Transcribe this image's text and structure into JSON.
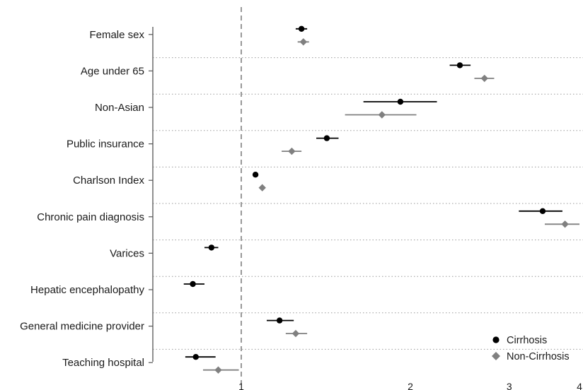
{
  "chart_data": {
    "type": "forest",
    "title": "",
    "xlabel": "",
    "ylabel": "",
    "x_scale": "log",
    "xlim": [
      0.78,
      4.0
    ],
    "reference_line": 1,
    "xticks": [
      1,
      2,
      3,
      4
    ],
    "xtick_labels": [
      "1",
      "2",
      "3",
      "4"
    ],
    "categories": [
      "Female sex",
      "Age under 65",
      "Non-Asian",
      "Public insurance",
      "Charlson Index",
      "Chronic pain diagnosis",
      "Varices",
      "Hepatic encephalopathy",
      "General medicine provider",
      "Teaching hospital"
    ],
    "series": [
      {
        "name": "Cirrhosis",
        "marker": "circle",
        "color": "#000000",
        "estimates": [
          1.28,
          2.45,
          1.92,
          1.42,
          1.06,
          3.44,
          0.885,
          0.82,
          1.17,
          0.83
        ],
        "lower": [
          1.25,
          2.35,
          1.65,
          1.36,
          1.06,
          3.12,
          0.86,
          0.79,
          1.11,
          0.795
        ],
        "upper": [
          1.31,
          2.56,
          2.23,
          1.49,
          1.06,
          3.73,
          0.91,
          0.86,
          1.24,
          0.9
        ]
      },
      {
        "name": "Non-Cirrhosis",
        "marker": "diamond",
        "color": "#808080",
        "estimates": [
          1.29,
          2.71,
          1.78,
          1.23,
          1.09,
          3.77,
          null,
          null,
          1.25,
          0.91
        ],
        "lower": [
          1.26,
          2.6,
          1.53,
          1.18,
          1.09,
          3.47,
          null,
          null,
          1.2,
          0.855
        ],
        "upper": [
          1.32,
          2.82,
          2.05,
          1.28,
          1.09,
          4.0,
          null,
          null,
          1.31,
          0.99
        ]
      }
    ],
    "legend_position": "bottom-right",
    "grid": "dotted horizontal separators"
  }
}
